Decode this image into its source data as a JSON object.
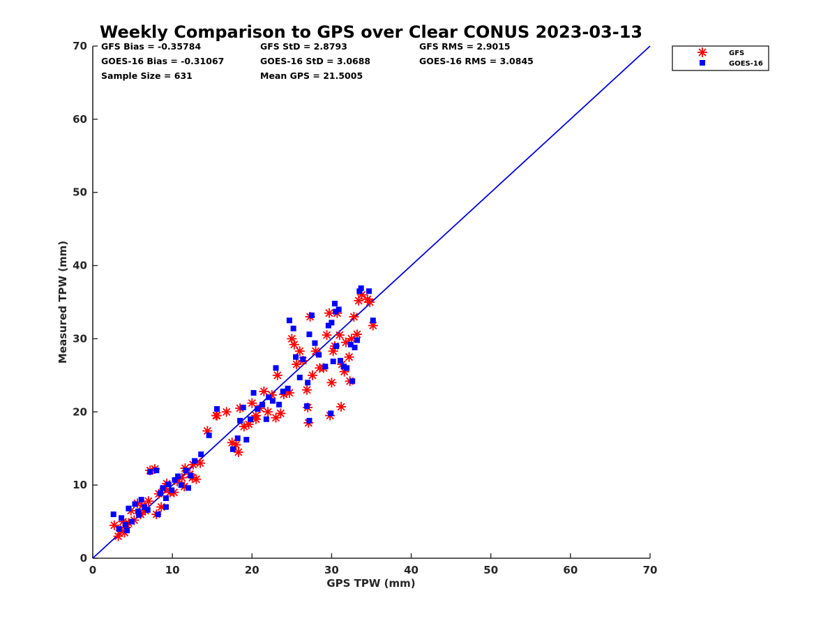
{
  "chart_data": {
    "type": "scatter",
    "title": "Weekly Comparison to GPS over Clear CONUS 2023-03-13",
    "xlabel": "GPS TPW (mm)",
    "ylabel": "Measured TPW (mm)",
    "xlim": [
      0,
      70
    ],
    "ylim": [
      0,
      70
    ],
    "xticks": [
      "0",
      "10",
      "20",
      "30",
      "40",
      "50",
      "60",
      "70"
    ],
    "yticks": [
      "0",
      "10",
      "20",
      "30",
      "40",
      "50",
      "60",
      "70"
    ],
    "grid": false,
    "legend_position": "top-right outside",
    "stats": {
      "gfs_bias": "GFS Bias = -0.35784",
      "gfs_std": "GFS StD = 2.8793",
      "gfs_rms": "GFS RMS = 2.9015",
      "goes_bias": "GOES-16 Bias = -0.31067",
      "goes_std": "GOES-16 StD = 3.0688",
      "goes_rms": "GOES-16 RMS = 3.0845",
      "sample_size": "Sample Size = 631",
      "mean_gps": "Mean GPS = 21.5005"
    },
    "reference_line": {
      "x": [
        0,
        70
      ],
      "y": [
        0,
        70
      ],
      "color": "#0000dd"
    },
    "series": [
      {
        "name": "GFS",
        "marker": "asterisk",
        "color": "#ff0000",
        "points": [
          [
            2.7,
            4.5
          ],
          [
            3.2,
            3.0
          ],
          [
            3.5,
            3.8
          ],
          [
            3.8,
            5.0
          ],
          [
            4.2,
            4.2
          ],
          [
            4.5,
            4.8
          ],
          [
            4.8,
            6.5
          ],
          [
            5.2,
            5.2
          ],
          [
            5.6,
            7.5
          ],
          [
            5.9,
            6.2
          ],
          [
            6.2,
            7.2
          ],
          [
            6.6,
            6.5
          ],
          [
            7.0,
            7.8
          ],
          [
            7.2,
            12.0
          ],
          [
            7.8,
            12.2
          ],
          [
            8.0,
            6.0
          ],
          [
            8.3,
            8.8
          ],
          [
            8.6,
            7.0
          ],
          [
            9.0,
            9.5
          ],
          [
            9.3,
            10.2
          ],
          [
            9.7,
            9.0
          ],
          [
            10.2,
            9.0
          ],
          [
            10.6,
            10.5
          ],
          [
            11.2,
            11.0
          ],
          [
            11.6,
            12.3
          ],
          [
            11.5,
            9.8
          ],
          [
            12.2,
            11.5
          ],
          [
            12.6,
            12.8
          ],
          [
            13.0,
            10.8
          ],
          [
            13.5,
            13.0
          ],
          [
            14.4,
            17.4
          ],
          [
            15.6,
            19.5
          ],
          [
            17.5,
            15.8
          ],
          [
            18.0,
            15.5
          ],
          [
            18.3,
            14.5
          ],
          [
            18.5,
            20.5
          ],
          [
            19.0,
            18.0
          ],
          [
            19.6,
            18.3
          ],
          [
            20.0,
            21.2
          ],
          [
            20.5,
            19.0
          ],
          [
            21.0,
            20.5
          ],
          [
            21.5,
            22.8
          ],
          [
            22.0,
            20.0
          ],
          [
            22.5,
            22.3
          ],
          [
            23.0,
            19.2
          ],
          [
            23.2,
            25.0
          ],
          [
            23.6,
            19.8
          ],
          [
            24.0,
            22.4
          ],
          [
            24.7,
            22.6
          ],
          [
            25.0,
            30.0
          ],
          [
            25.3,
            29.2
          ],
          [
            25.6,
            26.5
          ],
          [
            26.0,
            28.3
          ],
          [
            26.4,
            27.0
          ],
          [
            26.9,
            23.0
          ],
          [
            27.0,
            20.6
          ],
          [
            27.1,
            18.5
          ],
          [
            27.3,
            33.0
          ],
          [
            27.6,
            25.0
          ],
          [
            28.0,
            28.3
          ],
          [
            28.5,
            26.0
          ],
          [
            29.0,
            26.0
          ],
          [
            29.4,
            30.5
          ],
          [
            29.7,
            33.5
          ],
          [
            29.8,
            19.5
          ],
          [
            30.0,
            24.0
          ],
          [
            30.2,
            28.3
          ],
          [
            30.4,
            29.0
          ],
          [
            30.7,
            33.5
          ],
          [
            31.0,
            30.5
          ],
          [
            31.3,
            26.5
          ],
          [
            31.6,
            25.5
          ],
          [
            31.8,
            29.5
          ],
          [
            32.2,
            27.5
          ],
          [
            32.3,
            24.2
          ],
          [
            32.5,
            30.0
          ],
          [
            32.8,
            33.0
          ],
          [
            33.2,
            30.6
          ],
          [
            33.4,
            35.2
          ],
          [
            33.8,
            36.0
          ],
          [
            34.5,
            35.4
          ],
          [
            34.8,
            35.0
          ],
          [
            35.2,
            31.8
          ],
          [
            31.2,
            20.7
          ],
          [
            20.5,
            19.5
          ],
          [
            15.5,
            19.5
          ],
          [
            16.8,
            20.0
          ],
          [
            12.5,
            11.0
          ],
          [
            6.0,
            6.0
          ],
          [
            4.0,
            3.5
          ]
        ]
      },
      {
        "name": "GOES-16",
        "marker": "square",
        "color": "#0000ff",
        "points": [
          [
            2.6,
            6.0
          ],
          [
            3.3,
            4.0
          ],
          [
            3.6,
            5.5
          ],
          [
            4.1,
            4.6
          ],
          [
            4.5,
            6.8
          ],
          [
            4.9,
            5.0
          ],
          [
            5.3,
            7.4
          ],
          [
            5.7,
            6.4
          ],
          [
            6.1,
            8.0
          ],
          [
            6.5,
            7.0
          ],
          [
            6.9,
            6.6
          ],
          [
            7.2,
            11.8
          ],
          [
            8.0,
            12.0
          ],
          [
            8.2,
            6.0
          ],
          [
            8.5,
            8.9
          ],
          [
            8.8,
            9.6
          ],
          [
            9.2,
            8.2
          ],
          [
            9.5,
            10.1
          ],
          [
            9.9,
            9.3
          ],
          [
            10.3,
            10.7
          ],
          [
            10.7,
            11.2
          ],
          [
            11.1,
            10.0
          ],
          [
            11.7,
            12.0
          ],
          [
            12.3,
            11.3
          ],
          [
            12.8,
            13.3
          ],
          [
            13.6,
            14.2
          ],
          [
            14.6,
            16.8
          ],
          [
            15.6,
            20.4
          ],
          [
            17.6,
            14.9
          ],
          [
            18.2,
            16.4
          ],
          [
            18.5,
            18.8
          ],
          [
            18.9,
            20.6
          ],
          [
            19.3,
            16.2
          ],
          [
            19.8,
            19.0
          ],
          [
            20.2,
            22.6
          ],
          [
            20.7,
            20.4
          ],
          [
            21.3,
            21.0
          ],
          [
            21.8,
            19.0
          ],
          [
            22.1,
            22.0
          ],
          [
            22.6,
            21.5
          ],
          [
            23.0,
            26.0
          ],
          [
            23.4,
            21.0
          ],
          [
            23.9,
            22.8
          ],
          [
            24.5,
            23.2
          ],
          [
            24.7,
            32.5
          ],
          [
            25.2,
            31.4
          ],
          [
            25.5,
            27.5
          ],
          [
            26.0,
            24.7
          ],
          [
            26.4,
            27.2
          ],
          [
            26.9,
            20.8
          ],
          [
            27.0,
            24.0
          ],
          [
            27.2,
            30.6
          ],
          [
            27.5,
            33.2
          ],
          [
            27.9,
            29.4
          ],
          [
            28.4,
            27.8
          ],
          [
            29.2,
            26.2
          ],
          [
            29.6,
            31.8
          ],
          [
            30.0,
            32.2
          ],
          [
            30.2,
            26.9
          ],
          [
            30.4,
            34.8
          ],
          [
            30.6,
            29.0
          ],
          [
            30.9,
            34.0
          ],
          [
            31.1,
            27.0
          ],
          [
            31.5,
            26.2
          ],
          [
            31.9,
            26.0
          ],
          [
            32.4,
            29.2
          ],
          [
            32.6,
            24.2
          ],
          [
            32.9,
            28.8
          ],
          [
            33.2,
            29.8
          ],
          [
            33.5,
            36.5
          ],
          [
            33.7,
            36.9
          ],
          [
            34.7,
            36.5
          ],
          [
            35.2,
            32.5
          ],
          [
            30.5,
            33.7
          ],
          [
            29.9,
            19.8
          ],
          [
            27.2,
            18.8
          ],
          [
            12.0,
            9.6
          ],
          [
            9.2,
            7.0
          ],
          [
            5.8,
            5.9
          ],
          [
            4.3,
            3.8
          ]
        ]
      }
    ]
  }
}
